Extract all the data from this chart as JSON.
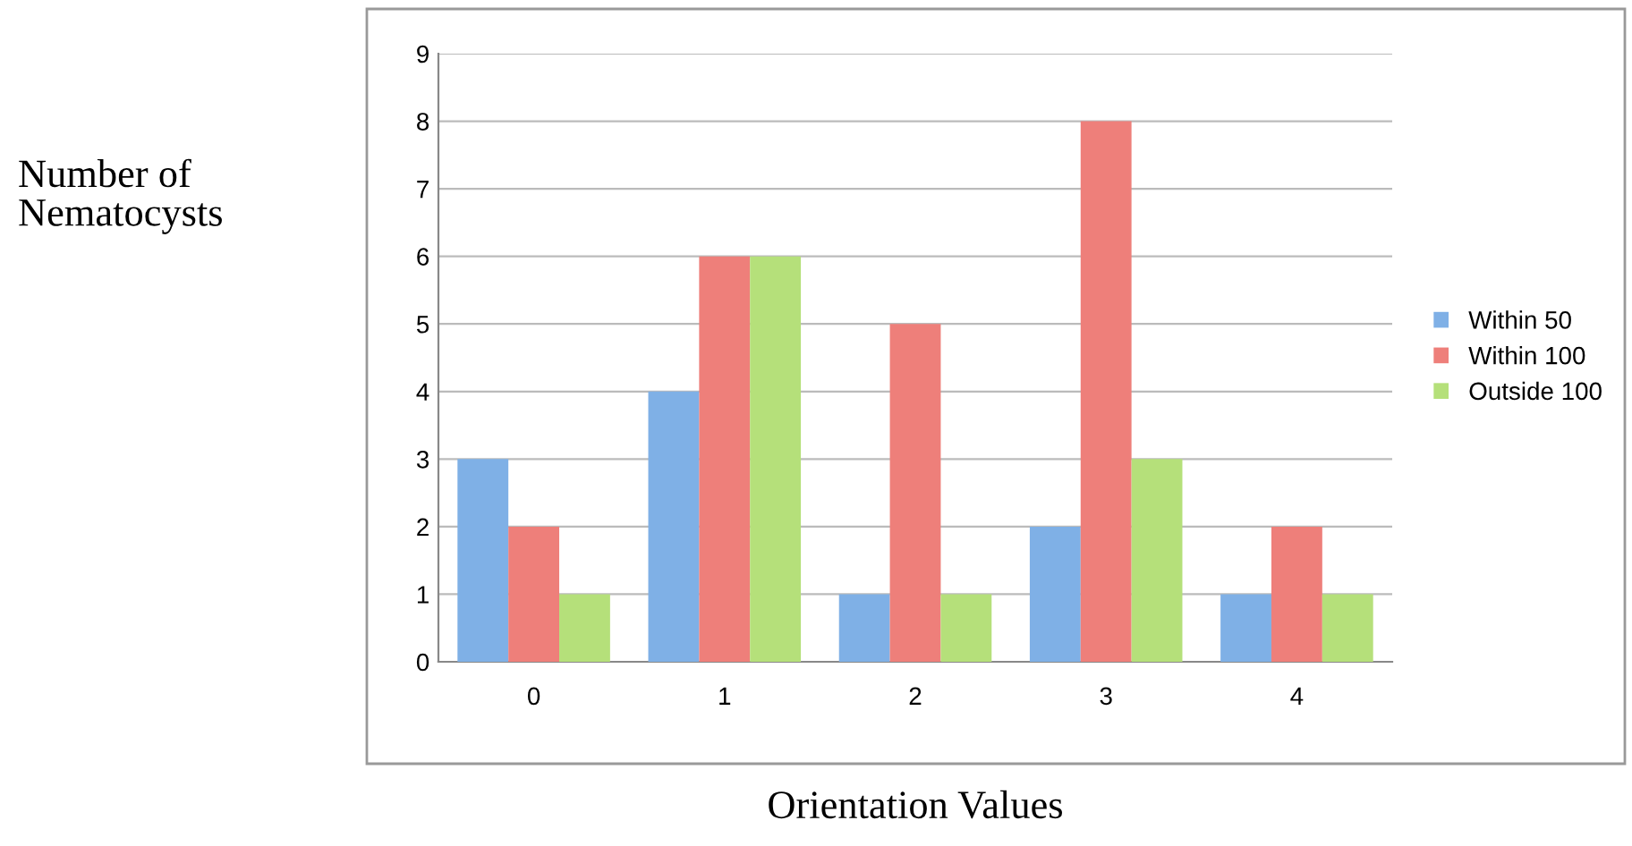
{
  "chart_data": {
    "type": "bar",
    "xlabel": "Orientation Values",
    "ylabel": "Number of\nNematocysts",
    "categories": [
      "0",
      "1",
      "2",
      "3",
      "4"
    ],
    "series": [
      {
        "name": "Within 50",
        "color": "#7fb0e6",
        "values": [
          3,
          4,
          1,
          2,
          1
        ]
      },
      {
        "name": "Within 100",
        "color": "#ee7f7a",
        "values": [
          2,
          6,
          5,
          8,
          2
        ]
      },
      {
        "name": "Outside 100",
        "color": "#b5e07a",
        "values": [
          1,
          6,
          1,
          3,
          1
        ]
      }
    ],
    "ylim": [
      0,
      9
    ],
    "yticks": [
      0,
      1,
      2,
      3,
      4,
      5,
      6,
      7,
      8,
      9
    ],
    "grid": "y",
    "legend": "right"
  }
}
